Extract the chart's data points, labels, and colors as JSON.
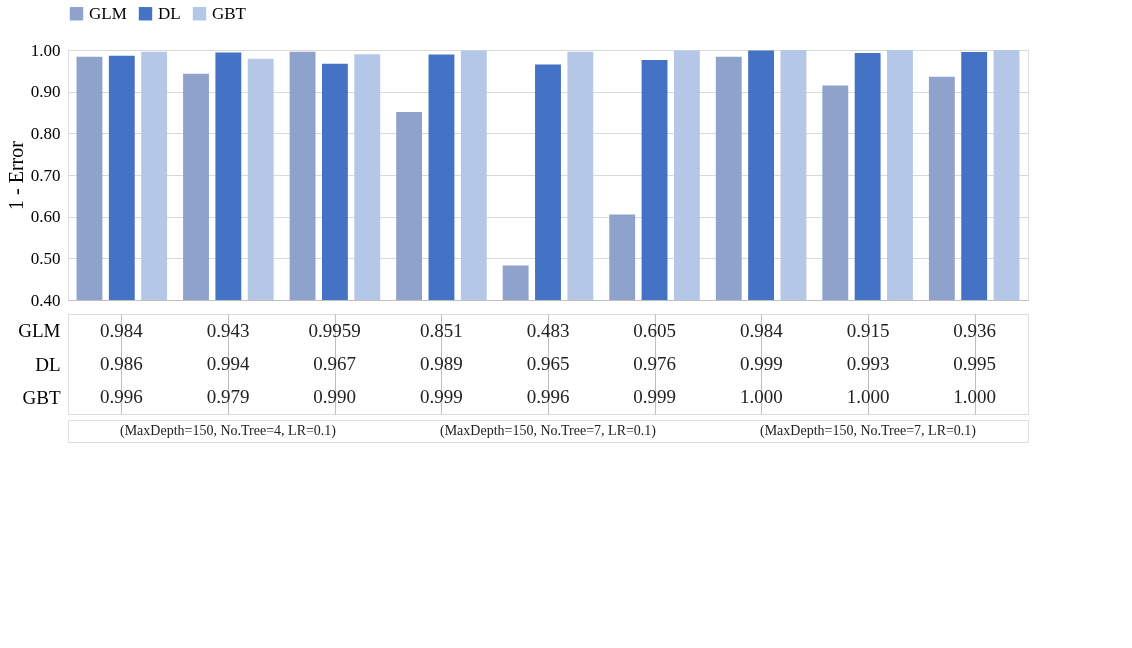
{
  "chart_data": {
    "type": "bar",
    "ylabel": "1 - Error",
    "categories": [
      null,
      null,
      null,
      null,
      null,
      null,
      null,
      null,
      null
    ],
    "series": [
      {
        "name": "GLM",
        "color": "#8fa2cc",
        "values": [
          0.984,
          0.943,
          0.9959,
          0.851,
          0.483,
          0.605,
          0.984,
          0.915,
          0.936
        ],
        "value_labels": [
          "0.984",
          "0.943",
          "0.9959",
          "0.851",
          "0.483",
          "0.605",
          "0.984",
          "0.915",
          "0.936"
        ]
      },
      {
        "name": "DL",
        "color": "#4472c4",
        "values": [
          0.986,
          0.994,
          0.967,
          0.989,
          0.965,
          0.976,
          0.999,
          0.993,
          0.995
        ],
        "value_labels": [
          "0.986",
          "0.994",
          "0.967",
          "0.989",
          "0.965",
          "0.976",
          "0.999",
          "0.993",
          "0.995"
        ]
      },
      {
        "name": "GBT",
        "color": "#b4c7e7",
        "values": [
          0.996,
          0.979,
          0.99,
          0.999,
          0.996,
          0.999,
          1.0,
          1.0,
          1.0
        ],
        "value_labels": [
          "0.996",
          "0.979",
          "0.990",
          "0.999",
          "0.996",
          "0.999",
          "1.000",
          "1.000",
          "1.000"
        ]
      }
    ],
    "ylim": [
      0.4,
      1.0
    ],
    "yticks": [
      {
        "value": 0.4,
        "label": "0.40"
      },
      {
        "value": 0.5,
        "label": "0.50"
      },
      {
        "value": 0.6,
        "label": "0.60"
      },
      {
        "value": 0.7,
        "label": "0.70"
      },
      {
        "value": 0.8,
        "label": "0.80"
      },
      {
        "value": 0.9,
        "label": "0.90"
      },
      {
        "value": 1.0,
        "label": "1.00"
      }
    ],
    "grid": "y",
    "legend": "top",
    "tick_labels": "y",
    "annotations": [
      "(MaxDepth=150, No.Tree=4, LR=0.1)",
      "(MaxDepth=150, No.Tree=7, LR=0.1)",
      "(MaxDepth=150, No.Tree=7, LR=0.1)"
    ]
  }
}
